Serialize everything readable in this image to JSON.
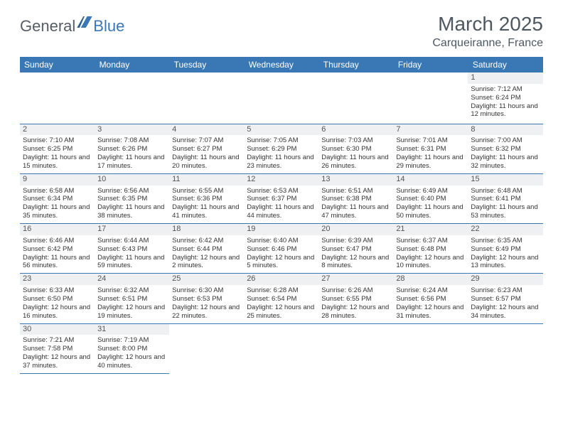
{
  "brand": {
    "part1": "General",
    "part2": "Blue"
  },
  "title": "March 2025",
  "location": "Carqueiranne, France",
  "colors": {
    "header_bg": "#3a78b5",
    "header_text": "#ffffff",
    "border": "#3a78b5",
    "daynum_bg": "#eef0f1",
    "text": "#333333",
    "brand_gray": "#555e66",
    "brand_blue": "#3a78b5",
    "title_color": "#4d5861",
    "page_bg": "#ffffff"
  },
  "layout": {
    "columns": 7,
    "rows": 6,
    "cell_font_size_pt": 7,
    "header_font_size_pt": 9,
    "title_font_size_pt": 21,
    "location_font_size_pt": 12
  },
  "weekdays": [
    "Sunday",
    "Monday",
    "Tuesday",
    "Wednesday",
    "Thursday",
    "Friday",
    "Saturday"
  ],
  "weeks": [
    [
      null,
      null,
      null,
      null,
      null,
      null,
      {
        "day": "1",
        "sunrise": "Sunrise: 7:12 AM",
        "sunset": "Sunset: 6:24 PM",
        "daylight": "Daylight: 11 hours and 12 minutes."
      }
    ],
    [
      {
        "day": "2",
        "sunrise": "Sunrise: 7:10 AM",
        "sunset": "Sunset: 6:25 PM",
        "daylight": "Daylight: 11 hours and 15 minutes."
      },
      {
        "day": "3",
        "sunrise": "Sunrise: 7:08 AM",
        "sunset": "Sunset: 6:26 PM",
        "daylight": "Daylight: 11 hours and 17 minutes."
      },
      {
        "day": "4",
        "sunrise": "Sunrise: 7:07 AM",
        "sunset": "Sunset: 6:27 PM",
        "daylight": "Daylight: 11 hours and 20 minutes."
      },
      {
        "day": "5",
        "sunrise": "Sunrise: 7:05 AM",
        "sunset": "Sunset: 6:29 PM",
        "daylight": "Daylight: 11 hours and 23 minutes."
      },
      {
        "day": "6",
        "sunrise": "Sunrise: 7:03 AM",
        "sunset": "Sunset: 6:30 PM",
        "daylight": "Daylight: 11 hours and 26 minutes."
      },
      {
        "day": "7",
        "sunrise": "Sunrise: 7:01 AM",
        "sunset": "Sunset: 6:31 PM",
        "daylight": "Daylight: 11 hours and 29 minutes."
      },
      {
        "day": "8",
        "sunrise": "Sunrise: 7:00 AM",
        "sunset": "Sunset: 6:32 PM",
        "daylight": "Daylight: 11 hours and 32 minutes."
      }
    ],
    [
      {
        "day": "9",
        "sunrise": "Sunrise: 6:58 AM",
        "sunset": "Sunset: 6:34 PM",
        "daylight": "Daylight: 11 hours and 35 minutes."
      },
      {
        "day": "10",
        "sunrise": "Sunrise: 6:56 AM",
        "sunset": "Sunset: 6:35 PM",
        "daylight": "Daylight: 11 hours and 38 minutes."
      },
      {
        "day": "11",
        "sunrise": "Sunrise: 6:55 AM",
        "sunset": "Sunset: 6:36 PM",
        "daylight": "Daylight: 11 hours and 41 minutes."
      },
      {
        "day": "12",
        "sunrise": "Sunrise: 6:53 AM",
        "sunset": "Sunset: 6:37 PM",
        "daylight": "Daylight: 11 hours and 44 minutes."
      },
      {
        "day": "13",
        "sunrise": "Sunrise: 6:51 AM",
        "sunset": "Sunset: 6:38 PM",
        "daylight": "Daylight: 11 hours and 47 minutes."
      },
      {
        "day": "14",
        "sunrise": "Sunrise: 6:49 AM",
        "sunset": "Sunset: 6:40 PM",
        "daylight": "Daylight: 11 hours and 50 minutes."
      },
      {
        "day": "15",
        "sunrise": "Sunrise: 6:48 AM",
        "sunset": "Sunset: 6:41 PM",
        "daylight": "Daylight: 11 hours and 53 minutes."
      }
    ],
    [
      {
        "day": "16",
        "sunrise": "Sunrise: 6:46 AM",
        "sunset": "Sunset: 6:42 PM",
        "daylight": "Daylight: 11 hours and 56 minutes."
      },
      {
        "day": "17",
        "sunrise": "Sunrise: 6:44 AM",
        "sunset": "Sunset: 6:43 PM",
        "daylight": "Daylight: 11 hours and 59 minutes."
      },
      {
        "day": "18",
        "sunrise": "Sunrise: 6:42 AM",
        "sunset": "Sunset: 6:44 PM",
        "daylight": "Daylight: 12 hours and 2 minutes."
      },
      {
        "day": "19",
        "sunrise": "Sunrise: 6:40 AM",
        "sunset": "Sunset: 6:46 PM",
        "daylight": "Daylight: 12 hours and 5 minutes."
      },
      {
        "day": "20",
        "sunrise": "Sunrise: 6:39 AM",
        "sunset": "Sunset: 6:47 PM",
        "daylight": "Daylight: 12 hours and 8 minutes."
      },
      {
        "day": "21",
        "sunrise": "Sunrise: 6:37 AM",
        "sunset": "Sunset: 6:48 PM",
        "daylight": "Daylight: 12 hours and 10 minutes."
      },
      {
        "day": "22",
        "sunrise": "Sunrise: 6:35 AM",
        "sunset": "Sunset: 6:49 PM",
        "daylight": "Daylight: 12 hours and 13 minutes."
      }
    ],
    [
      {
        "day": "23",
        "sunrise": "Sunrise: 6:33 AM",
        "sunset": "Sunset: 6:50 PM",
        "daylight": "Daylight: 12 hours and 16 minutes."
      },
      {
        "day": "24",
        "sunrise": "Sunrise: 6:32 AM",
        "sunset": "Sunset: 6:51 PM",
        "daylight": "Daylight: 12 hours and 19 minutes."
      },
      {
        "day": "25",
        "sunrise": "Sunrise: 6:30 AM",
        "sunset": "Sunset: 6:53 PM",
        "daylight": "Daylight: 12 hours and 22 minutes."
      },
      {
        "day": "26",
        "sunrise": "Sunrise: 6:28 AM",
        "sunset": "Sunset: 6:54 PM",
        "daylight": "Daylight: 12 hours and 25 minutes."
      },
      {
        "day": "27",
        "sunrise": "Sunrise: 6:26 AM",
        "sunset": "Sunset: 6:55 PM",
        "daylight": "Daylight: 12 hours and 28 minutes."
      },
      {
        "day": "28",
        "sunrise": "Sunrise: 6:24 AM",
        "sunset": "Sunset: 6:56 PM",
        "daylight": "Daylight: 12 hours and 31 minutes."
      },
      {
        "day": "29",
        "sunrise": "Sunrise: 6:23 AM",
        "sunset": "Sunset: 6:57 PM",
        "daylight": "Daylight: 12 hours and 34 minutes."
      }
    ],
    [
      {
        "day": "30",
        "sunrise": "Sunrise: 7:21 AM",
        "sunset": "Sunset: 7:58 PM",
        "daylight": "Daylight: 12 hours and 37 minutes."
      },
      {
        "day": "31",
        "sunrise": "Sunrise: 7:19 AM",
        "sunset": "Sunset: 8:00 PM",
        "daylight": "Daylight: 12 hours and 40 minutes."
      },
      null,
      null,
      null,
      null,
      null
    ]
  ]
}
